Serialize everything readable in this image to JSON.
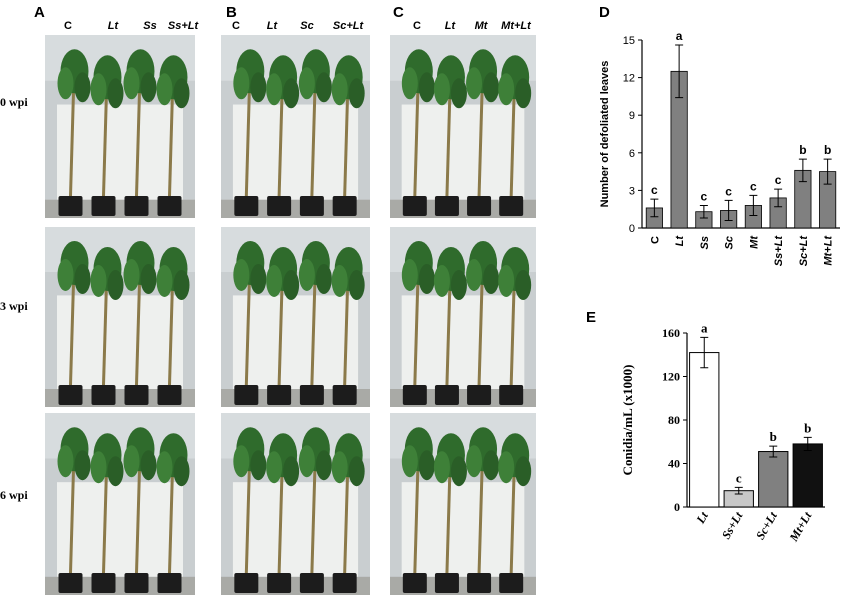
{
  "panels": {
    "A": {
      "letter": "A",
      "columns": [
        "C",
        "Lt",
        "Ss",
        "Ss+Lt"
      ]
    },
    "B": {
      "letter": "B",
      "columns": [
        "C",
        "Lt",
        "Sc",
        "Sc+Lt"
      ]
    },
    "C": {
      "letter": "C",
      "columns": [
        "C",
        "Lt",
        "Mt",
        "Mt+Lt"
      ]
    },
    "D": {
      "letter": "D"
    },
    "E": {
      "letter": "E"
    }
  },
  "rows": [
    "0 wpi",
    "3 wpi",
    "6 wpi"
  ],
  "colors": {
    "bar_gray": "#808080",
    "bar_light": "#c8c8c8",
    "bar_dark": "#111111",
    "bar_white": "#ffffff"
  },
  "chart_data": [
    {
      "type": "bar",
      "panel": "D",
      "categories": [
        "C",
        "Lt",
        "Ss",
        "Sc",
        "Mt",
        "Ss+Lt",
        "Sc+Lt",
        "Mt+Lt"
      ],
      "values": [
        1.6,
        12.5,
        1.3,
        1.4,
        1.8,
        2.4,
        4.6,
        4.5
      ],
      "errors": [
        0.7,
        2.1,
        0.5,
        0.8,
        0.8,
        0.7,
        0.9,
        1.0
      ],
      "letters": [
        "c",
        "a",
        "c",
        "c",
        "c",
        "c",
        "b",
        "b"
      ],
      "ylabel": "Number of defoliated leaves",
      "ylim": [
        0,
        15
      ],
      "yticks": [
        "0",
        "3",
        "6",
        "9",
        "12",
        "15"
      ]
    },
    {
      "type": "bar",
      "panel": "E",
      "categories": [
        "Lt",
        "Ss+Lt",
        "Sc+Lt",
        "Mt+Lt"
      ],
      "values": [
        142,
        15,
        51,
        58
      ],
      "errors": [
        14,
        3,
        5,
        6
      ],
      "letters": [
        "a",
        "c",
        "b",
        "b"
      ],
      "ylabel": "Conidia/mL (x1000)",
      "ylim": [
        0,
        160
      ],
      "yticks": [
        "0",
        "40",
        "80",
        "120",
        "160"
      ]
    }
  ]
}
